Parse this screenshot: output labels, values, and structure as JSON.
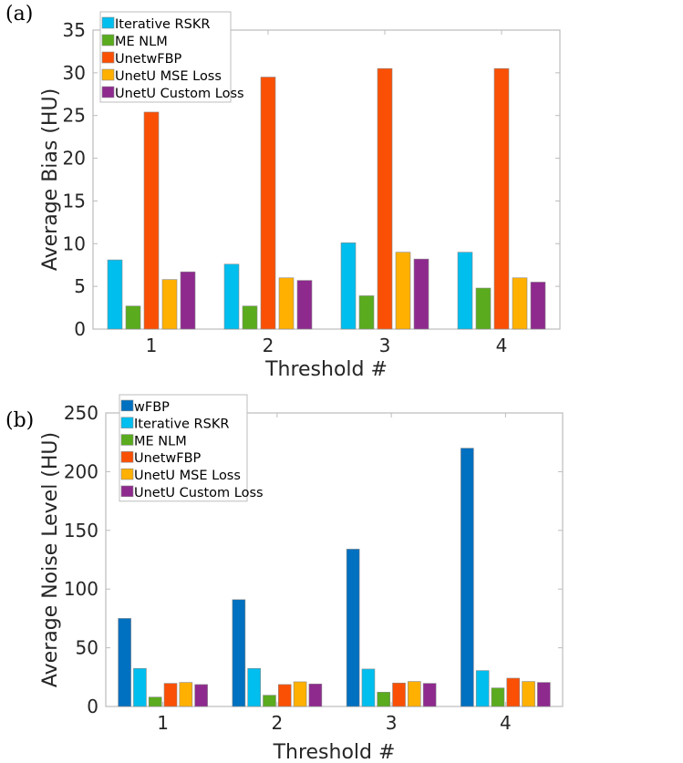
{
  "chart_data": [
    {
      "type": "bar",
      "panel_label": "(a)",
      "xlabel": "Threshold #",
      "ylabel": "Average Bias (HU)",
      "categories": [
        "1",
        "2",
        "3",
        "4"
      ],
      "ylim": [
        0,
        35
      ],
      "yticks": [
        0,
        5,
        10,
        15,
        20,
        25,
        30,
        35
      ],
      "grid": false,
      "legend_position": "top-left",
      "series": [
        {
          "name": "Iterative RSKR",
          "color": "#00BEEE",
          "values": [
            8.1,
            7.6,
            10.1,
            9.0
          ]
        },
        {
          "name": "ME NLM",
          "color": "#5AAB1E",
          "values": [
            2.7,
            2.7,
            3.9,
            4.8
          ]
        },
        {
          "name": "UnetwFBP",
          "color": "#FA5005",
          "values": [
            25.4,
            29.5,
            30.5,
            30.5
          ]
        },
        {
          "name": "UnetU MSE Loss",
          "color": "#FFB000",
          "values": [
            5.8,
            6.0,
            9.0,
            6.0
          ]
        },
        {
          "name": "UnetU Custom Loss",
          "color": "#8E2A8E",
          "values": [
            6.7,
            5.7,
            8.2,
            5.5
          ]
        }
      ]
    },
    {
      "type": "bar",
      "panel_label": "(b)",
      "xlabel": "Threshold #",
      "ylabel": "Average Noise Level (HU)",
      "categories": [
        "1",
        "2",
        "3",
        "4"
      ],
      "ylim": [
        0,
        250
      ],
      "yticks": [
        0,
        50,
        100,
        150,
        200,
        250
      ],
      "grid": false,
      "legend_position": "top-left",
      "series": [
        {
          "name": "wFBP",
          "color": "#0070C0",
          "values": [
            75,
            91,
            134,
            220
          ]
        },
        {
          "name": "Iterative RSKR",
          "color": "#00BEEE",
          "values": [
            32.4,
            32.4,
            31.9,
            30.6
          ]
        },
        {
          "name": "ME NLM",
          "color": "#5AAB1E",
          "values": [
            8,
            9.6,
            12.2,
            15.8
          ]
        },
        {
          "name": "UnetwFBP",
          "color": "#FA5005",
          "values": [
            19.7,
            18.7,
            20,
            24.1
          ]
        },
        {
          "name": "UnetU MSE Loss",
          "color": "#FFB000",
          "values": [
            20.5,
            21,
            21.3,
            21.3
          ]
        },
        {
          "name": "UnetU Custom Loss",
          "color": "#8E2A8E",
          "values": [
            18.7,
            19.2,
            19.7,
            20.5
          ]
        }
      ]
    }
  ]
}
